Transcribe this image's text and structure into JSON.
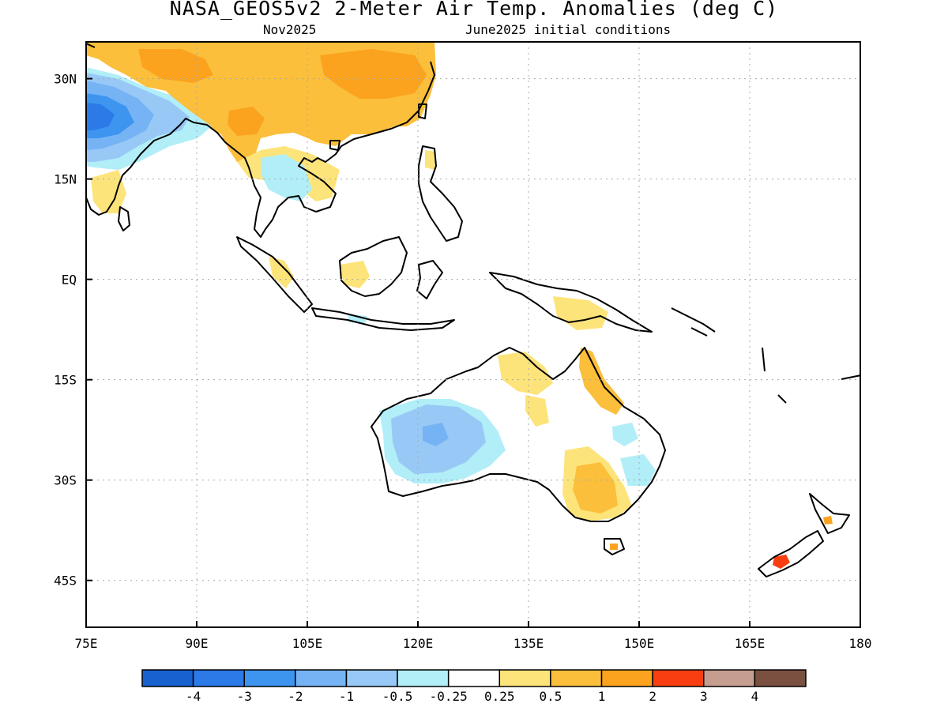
{
  "title": "NASA_GEOS5v2 2-Meter Air Temp. Anomalies (deg C)",
  "subtitle_left": "Nov2025",
  "subtitle_right": "June2025 initial conditions",
  "map": {
    "lon_range": [
      75,
      180
    ],
    "lat_range": [
      -52,
      35.5
    ],
    "lon_ticks": [
      {
        "lon": 75,
        "label": "75E"
      },
      {
        "lon": 90,
        "label": "90E"
      },
      {
        "lon": 105,
        "label": "105E"
      },
      {
        "lon": 120,
        "label": "120E"
      },
      {
        "lon": 135,
        "label": "135E"
      },
      {
        "lon": 150,
        "label": "150E"
      },
      {
        "lon": 165,
        "label": "165E"
      },
      {
        "lon": 180,
        "label": "180"
      }
    ],
    "lat_ticks": [
      {
        "lat": 30,
        "label": "30N"
      },
      {
        "lat": 15,
        "label": "15N"
      },
      {
        "lat": 0,
        "label": "EQ"
      },
      {
        "lat": -15,
        "label": "15S"
      },
      {
        "lat": -30,
        "label": "30S"
      },
      {
        "lat": -45,
        "label": "45S"
      }
    ],
    "grid": true
  },
  "colorbar": {
    "colors": [
      "#1862d0",
      "#2b7ae8",
      "#3d95f0",
      "#76b3f5",
      "#98c9f6",
      "#b1eef8",
      "#ffffff",
      "#fde47a",
      "#fbbf3b",
      "#fba31f",
      "#f93e12",
      "#c69e8f",
      "#7a5141"
    ],
    "labels": [
      "-4",
      "-3",
      "-2",
      "-1",
      "-0.5",
      "-0.25",
      "0.25",
      "0.5",
      "1",
      "2",
      "3",
      "4"
    ]
  }
}
